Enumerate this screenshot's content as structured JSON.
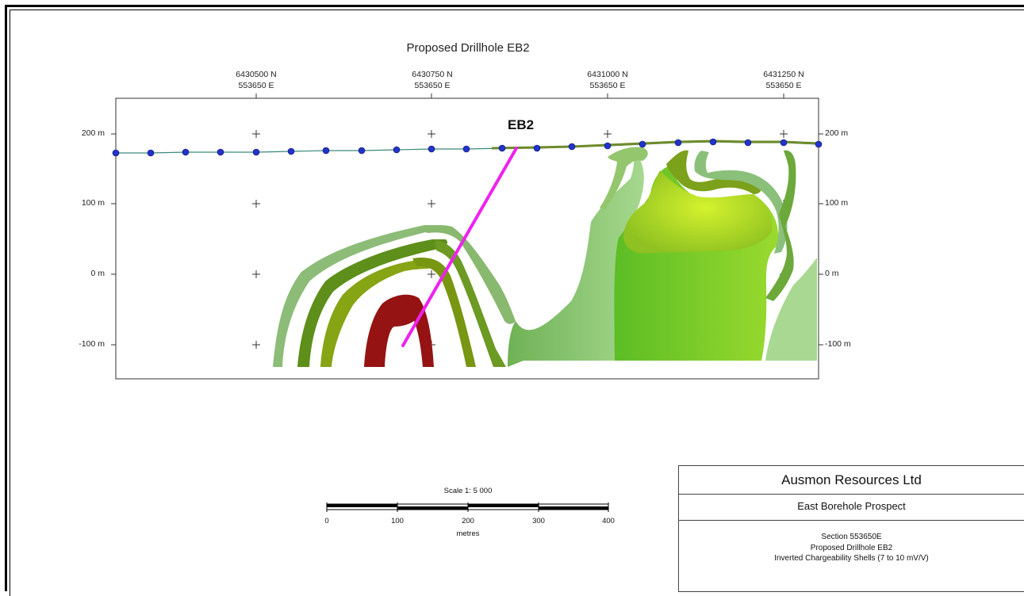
{
  "title": "Proposed Drillhole EB2",
  "top_coordinates": [
    {
      "north": "6430500 N",
      "east": "553650 E"
    },
    {
      "north": "6430750 N",
      "east": "553650 E"
    },
    {
      "north": "6431000 N",
      "east": "553650 E"
    },
    {
      "north": "6431250 N",
      "east": "553650 E"
    }
  ],
  "elevation_labels": [
    "200 m",
    "100 m",
    "0 m",
    "-100 m"
  ],
  "drillhole": {
    "label": "EB2",
    "color": "#ee22ee"
  },
  "colors": {
    "survey_line": "#3a8a7a",
    "survey_point": "#2233cc",
    "high_chargeability": "#9a1010",
    "shell_dark": "#5e8a10",
    "shell_mid": "#8aaa10",
    "shell_light": "#86c070",
    "shell_bright": "#c8ee30"
  },
  "scale": {
    "title": "Scale 1:  5 000",
    "ticks": [
      "0",
      "100",
      "200",
      "300",
      "400"
    ],
    "unit": "metres"
  },
  "title_block": {
    "company": "Ausmon Resources Ltd",
    "project": "East Borehole Prospect",
    "description": [
      "Section 553650E",
      "Proposed Drillhole EB2",
      "Inverted Chargeability Shells (7 to 10 mV/V)"
    ]
  }
}
